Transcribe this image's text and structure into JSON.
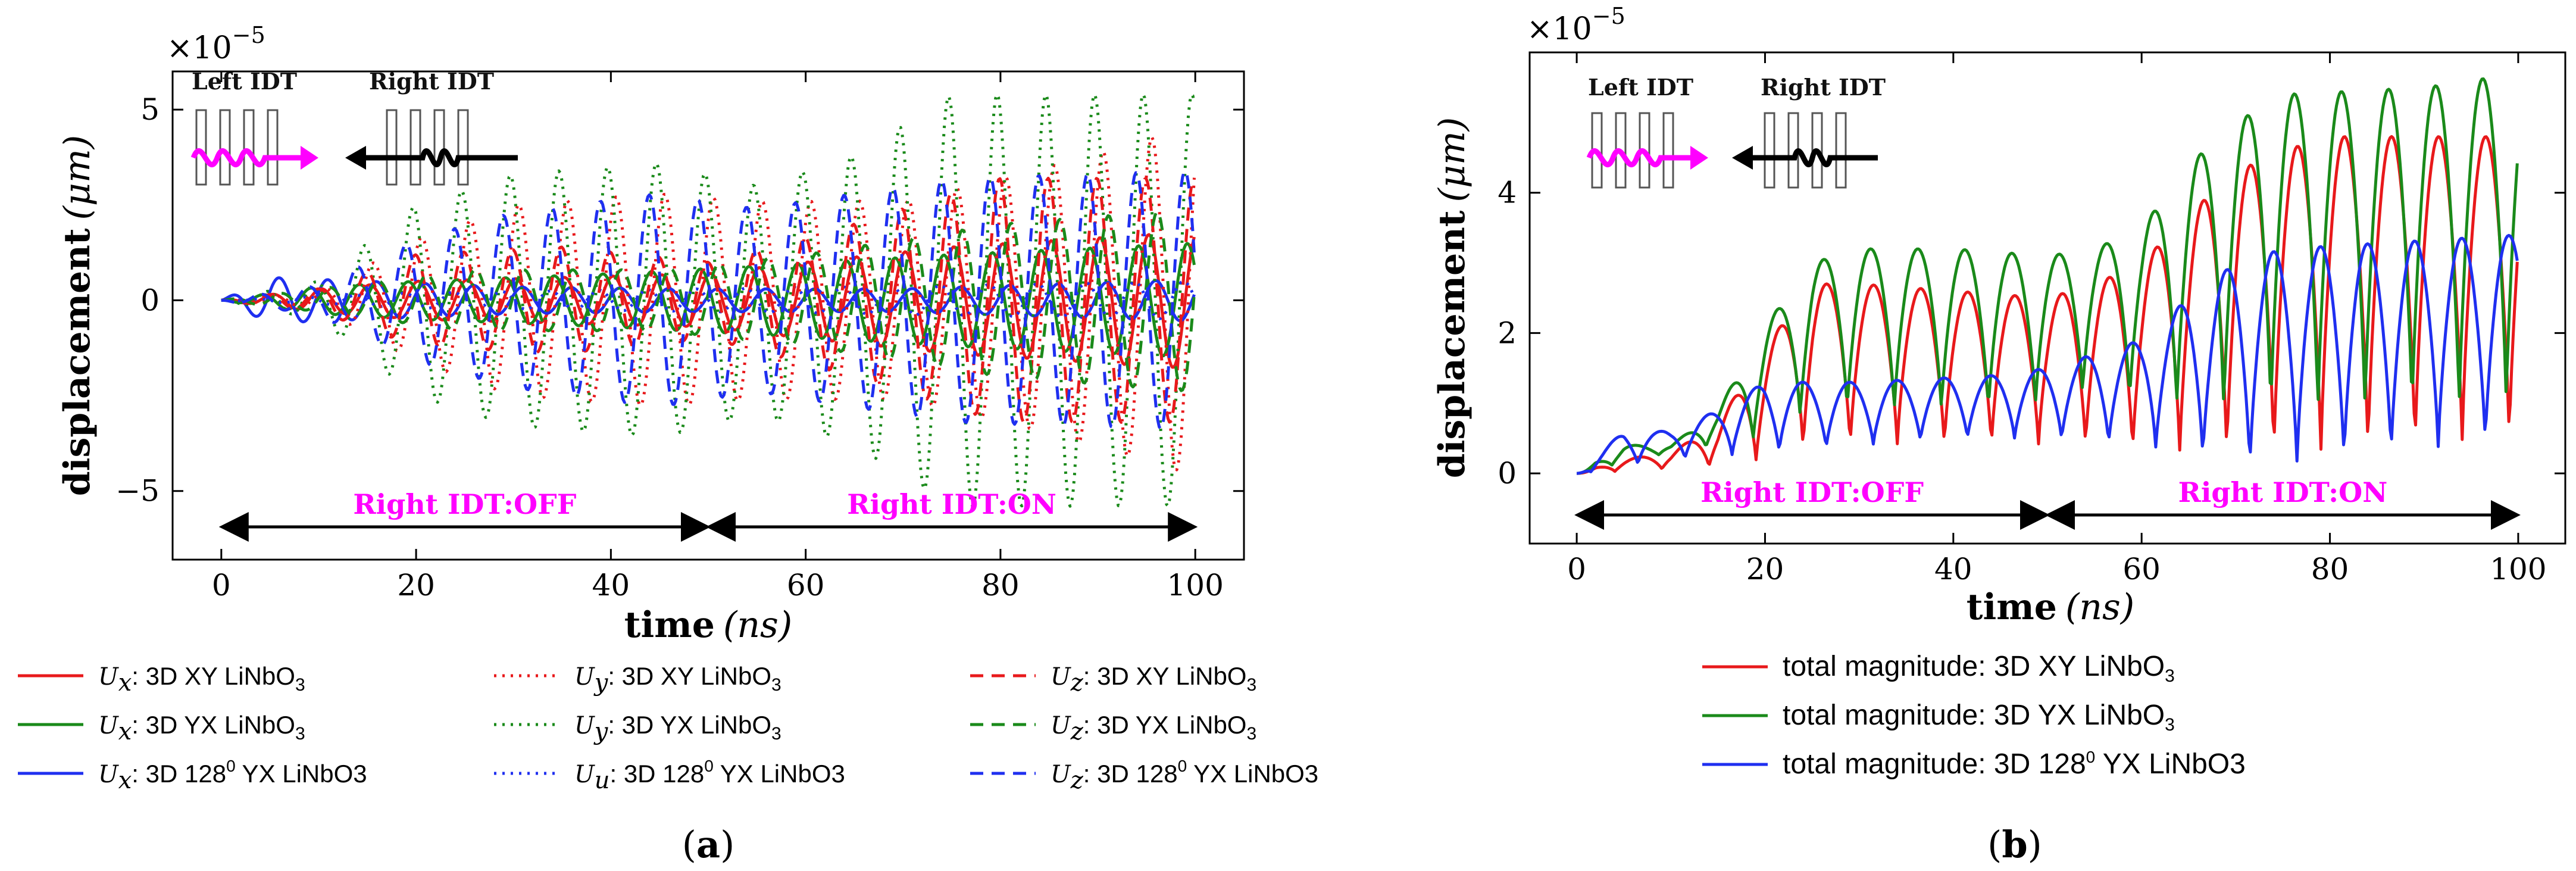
{
  "chart_data": [
    {
      "panel": "a",
      "caption_open": "(",
      "caption_letter": "a",
      "caption_close": ")",
      "type": "line",
      "xlabel": "time",
      "xunit": "(ns)",
      "ylabel": "displacement",
      "yunit": "(μm)",
      "multiplier": "×10",
      "multiplier_exp": "−5",
      "xlim": [
        -5,
        105
      ],
      "ylim": [
        -6.8,
        6.0
      ],
      "xticks": [
        0,
        20,
        40,
        60,
        80,
        100
      ],
      "yticks": [
        {
          "v": 5,
          "t": "5"
        },
        {
          "v": 0,
          "t": "0"
        },
        {
          "v": -5,
          "t": "−5"
        }
      ],
      "inset": {
        "left": "Left IDT",
        "right": "Right IDT"
      },
      "phase_labels": {
        "off": "Right IDT:OFF",
        "on": "Right IDT:ON"
      },
      "period": 5,
      "series": [
        {
          "name": "Ux: 3D XY LiNbO3",
          "sym": "U",
          "sub": "x",
          "text": ": 3D XY LiNbO",
          "sup": "",
          "tail": "3",
          "color": "#e8191b",
          "dash": "solid",
          "phase": 1.3,
          "envelope": [
            [
              0,
              0
            ],
            [
              10,
              0.3
            ],
            [
              20,
              0.5
            ],
            [
              35,
              0.6
            ],
            [
              50,
              0.7
            ],
            [
              60,
              1.0
            ],
            [
              75,
              1.4
            ],
            [
              100,
              1.8
            ]
          ]
        },
        {
          "name": "Ux: 3D YX LiNbO3",
          "sym": "U",
          "sub": "x",
          "text": ": 3D YX LiNbO",
          "sup": "",
          "tail": "3",
          "color": "#1a8a1a",
          "dash": "solid",
          "phase": 2.6,
          "envelope": [
            [
              0,
              0
            ],
            [
              10,
              0.35
            ],
            [
              20,
              0.5
            ],
            [
              40,
              0.7
            ],
            [
              55,
              0.9
            ],
            [
              75,
              1.2
            ],
            [
              100,
              1.5
            ]
          ]
        },
        {
          "name": "Ux: 3D 128° YX LiNbO3",
          "sym": "U",
          "sub": "x",
          "text": ": 3D 128",
          "sup": "0",
          "tail": " YX LiNbO3",
          "color": "#1f2ff0",
          "dash": "solid",
          "phase": 0.4,
          "envelope": [
            [
              0,
              0
            ],
            [
              5,
              0.6
            ],
            [
              15,
              0.5
            ],
            [
              30,
              0.35
            ],
            [
              50,
              0.3
            ],
            [
              70,
              0.3
            ],
            [
              100,
              0.55
            ]
          ]
        },
        {
          "name": "Uy: 3D XY LiNbO3",
          "sym": "U",
          "sub": "y",
          "text": ": 3D XY LiNbO",
          "sup": "",
          "tail": "3",
          "color": "#e8191b",
          "dash": "dot",
          "phase": 0.9,
          "envelope": [
            [
              0,
              0
            ],
            [
              10,
              0.2
            ],
            [
              20,
              1.6
            ],
            [
              30,
              2.5
            ],
            [
              45,
              2.8
            ],
            [
              55,
              2.6
            ],
            [
              70,
              2.6
            ],
            [
              85,
              3.5
            ],
            [
              100,
              4.6
            ]
          ]
        },
        {
          "name": "Uy: 3D YX LiNbO3",
          "sym": "U",
          "sub": "y",
          "text": ": 3D YX LiNbO",
          "sup": "",
          "tail": "3",
          "color": "#1a8a1a",
          "dash": "dot",
          "phase": 2.0,
          "envelope": [
            [
              0,
              0
            ],
            [
              10,
              0.5
            ],
            [
              20,
              2.5
            ],
            [
              30,
              3.3
            ],
            [
              45,
              3.6
            ],
            [
              55,
              3.0
            ],
            [
              65,
              3.8
            ],
            [
              75,
              5.4
            ],
            [
              100,
              5.4
            ]
          ]
        },
        {
          "name": "Uu: 3D 128° YX LiNbO3",
          "sym": "U",
          "sub": "u",
          "text": ": 3D 128",
          "sup": "0",
          "tail": " YX LiNbO3",
          "color": "#1f2ff0",
          "dash": "dot",
          "phase": 3.1,
          "envelope": [
            [
              0,
              0
            ],
            [
              20,
              0.2
            ],
            [
              50,
              0.3
            ],
            [
              100,
              0.5
            ]
          ]
        },
        {
          "name": "Uz: 3D XY LiNbO3",
          "sym": "U",
          "sub": "z",
          "text": ": 3D XY LiNbO",
          "sup": "",
          "tail": "3",
          "color": "#e8191b",
          "dash": "dash",
          "phase": 1.7,
          "envelope": [
            [
              0,
              0
            ],
            [
              10,
              0.3
            ],
            [
              20,
              1.2
            ],
            [
              35,
              1.4
            ],
            [
              50,
              1.0
            ],
            [
              65,
              2.0
            ],
            [
              80,
              3.2
            ],
            [
              100,
              3.2
            ]
          ]
        },
        {
          "name": "Uz: 3D YX LiNbO3",
          "sym": "U",
          "sub": "z",
          "text": ": 3D YX LiNbO",
          "sup": "",
          "tail": "3",
          "color": "#1a8a1a",
          "dash": "dash",
          "phase": 0.2,
          "envelope": [
            [
              0,
              0
            ],
            [
              10,
              0.3
            ],
            [
              25,
              0.8
            ],
            [
              45,
              0.8
            ],
            [
              60,
              1.2
            ],
            [
              80,
              2.0
            ],
            [
              100,
              2.4
            ]
          ]
        },
        {
          "name": "Uz: 3D 128° YX LiNbO3",
          "sym": "U",
          "sub": "z",
          "text": ": 3D 128",
          "sup": "0",
          "tail": " YX LiNbO3",
          "color": "#1f2ff0",
          "dash": "dash",
          "phase": 2.9,
          "envelope": [
            [
              0,
              0
            ],
            [
              10,
              0.4
            ],
            [
              20,
              1.6
            ],
            [
              30,
              2.3
            ],
            [
              45,
              2.8
            ],
            [
              55,
              2.4
            ],
            [
              75,
              3.2
            ],
            [
              100,
              3.4
            ]
          ]
        }
      ]
    },
    {
      "panel": "b",
      "caption_open": "(",
      "caption_letter": "b",
      "caption_close": ")",
      "type": "line",
      "xlabel": "time",
      "xunit": "(ns)",
      "ylabel": "displacement",
      "yunit": "(μm)",
      "multiplier": "×10",
      "multiplier_exp": "−5",
      "xlim": [
        -5,
        105
      ],
      "ylim": [
        -1.0,
        6.0
      ],
      "xticks": [
        0,
        20,
        40,
        60,
        80,
        100
      ],
      "yticks": [
        {
          "v": 0,
          "t": "0"
        },
        {
          "v": 2,
          "t": "2"
        },
        {
          "v": 4,
          "t": "4"
        }
      ],
      "inset": {
        "left": "Left IDT",
        "right": "Right IDT"
      },
      "phase_labels": {
        "off": "Right IDT:OFF",
        "on": "Right IDT:ON"
      },
      "period": 5,
      "series": [
        {
          "name": "total magnitude: 3D XY LiNbO3",
          "text": "total magnitude: 3D XY LiNbO",
          "sup": "",
          "tail": "3",
          "color": "#e8191b",
          "dash": "solid",
          "phase": 0.6,
          "upper": [
            [
              0,
              0
            ],
            [
              5,
              0.2
            ],
            [
              10,
              0.3
            ],
            [
              15,
              0.7
            ],
            [
              20,
              1.8
            ],
            [
              25,
              2.7
            ],
            [
              30,
              2.7
            ],
            [
              40,
              2.6
            ],
            [
              50,
              2.5
            ],
            [
              55,
              2.7
            ],
            [
              60,
              3.0
            ],
            [
              65,
              3.7
            ],
            [
              70,
              4.3
            ],
            [
              75,
              4.6
            ],
            [
              80,
              4.8
            ],
            [
              100,
              4.8
            ]
          ],
          "lower": [
            [
              0,
              0
            ],
            [
              15,
              0.1
            ],
            [
              20,
              0.2
            ],
            [
              25,
              0.4
            ],
            [
              35,
              0.4
            ],
            [
              45,
              0.4
            ],
            [
              55,
              0.4
            ],
            [
              60,
              0.3
            ],
            [
              70,
              0.3
            ],
            [
              80,
              0.3
            ],
            [
              90,
              0.4
            ],
            [
              100,
              0.5
            ]
          ]
        },
        {
          "name": "total magnitude: 3D YX LiNbO3",
          "text": "total magnitude: 3D YX LiNbO",
          "sup": "",
          "tail": "3",
          "color": "#1a8a1a",
          "dash": "solid",
          "phase": 0.8,
          "upper": [
            [
              0,
              0
            ],
            [
              5,
              0.4
            ],
            [
              10,
              0.4
            ],
            [
              15,
              0.9
            ],
            [
              20,
              2.1
            ],
            [
              25,
              3.0
            ],
            [
              30,
              3.2
            ],
            [
              40,
              3.2
            ],
            [
              50,
              3.1
            ],
            [
              55,
              3.2
            ],
            [
              60,
              3.5
            ],
            [
              65,
              4.4
            ],
            [
              70,
              5.0
            ],
            [
              75,
              5.4
            ],
            [
              90,
              5.5
            ],
            [
              100,
              5.7
            ]
          ],
          "lower": [
            [
              0,
              0
            ],
            [
              10,
              0.3
            ],
            [
              20,
              0.5
            ],
            [
              25,
              0.9
            ],
            [
              35,
              0.9
            ],
            [
              45,
              0.9
            ],
            [
              50,
              1.0
            ],
            [
              55,
              1.2
            ],
            [
              60,
              1.0
            ],
            [
              70,
              0.9
            ],
            [
              80,
              0.9
            ],
            [
              90,
              0.9
            ],
            [
              100,
              1.0
            ]
          ]
        },
        {
          "name": "total magnitude: 3D 128° YX LiNbO3",
          "text": "total magnitude: 3D 128",
          "sup": "0",
          "tail": " YX LiNbO3",
          "color": "#1f2ff0",
          "dash": "solid",
          "phase": 2.2,
          "upper": [
            [
              0,
              0
            ],
            [
              5,
              0.6
            ],
            [
              10,
              0.6
            ],
            [
              15,
              0.9
            ],
            [
              20,
              1.3
            ],
            [
              30,
              1.3
            ],
            [
              45,
              1.4
            ],
            [
              50,
              1.5
            ],
            [
              60,
              1.9
            ],
            [
              65,
              2.5
            ],
            [
              70,
              3.0
            ],
            [
              75,
              3.2
            ],
            [
              100,
              3.4
            ]
          ],
          "lower": [
            [
              0,
              0
            ],
            [
              10,
              0.2
            ],
            [
              20,
              0.3
            ],
            [
              30,
              0.4
            ],
            [
              40,
              0.5
            ],
            [
              50,
              0.5
            ],
            [
              60,
              0.4
            ],
            [
              65,
              0.3
            ],
            [
              70,
              0.1
            ],
            [
              80,
              0.2
            ],
            [
              100,
              0.5
            ]
          ]
        }
      ]
    }
  ]
}
